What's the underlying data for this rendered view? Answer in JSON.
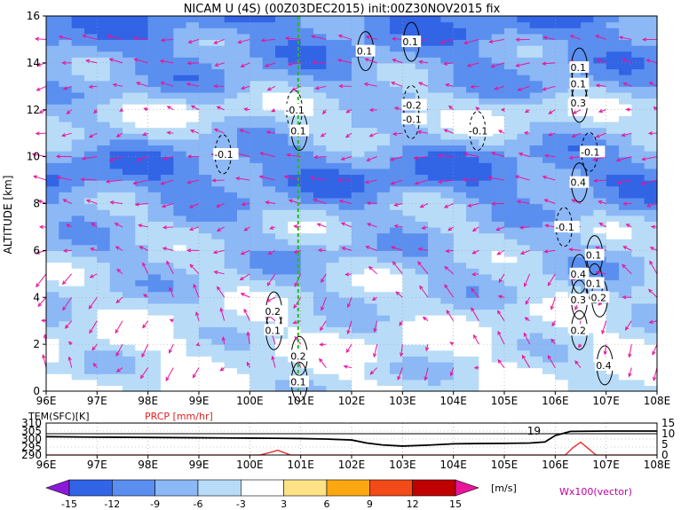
{
  "title": "NICAM U (4S) (00Z03DEC2015) init:00Z30NOV2015 fix",
  "chart_data": [
    {
      "type": "heatmap",
      "title": "NICAM U (4S) (00Z03DEC2015) init:00Z30NOV2015 fix",
      "ylabel": "ALTITUDE [km]",
      "x_ticks": [
        "96E",
        "97E",
        "98E",
        "99E",
        "100E",
        "101E",
        "102E",
        "103E",
        "104E",
        "105E",
        "106E",
        "107E",
        "108E"
      ],
      "y_ticks": [
        "0",
        "2",
        "4",
        "6",
        "8",
        "10",
        "12",
        "14",
        "16"
      ],
      "xlim": [
        96,
        108
      ],
      "ylim": [
        0,
        16
      ],
      "colorbar": {
        "levels": [
          "-15",
          "-12",
          "-9",
          "-6",
          "-3",
          "3",
          "6",
          "9",
          "12",
          "15"
        ],
        "unit": "[m/s]",
        "colors": [
          "#8b1ad8",
          "#3264e6",
          "#5a8ff0",
          "#8cb8f5",
          "#b8dcf8",
          "#ffffff",
          "#fde286",
          "#fba810",
          "#f24a18",
          "#c00000",
          "#e8149a"
        ]
      },
      "vector_label": "Wx100(vector)",
      "band_values": [
        {
          "z": 0,
          "u": -3
        },
        {
          "z": 1,
          "u": -4
        },
        {
          "z": 2,
          "u": -3
        },
        {
          "z": 3,
          "u": -4
        },
        {
          "z": 4,
          "u": -5
        },
        {
          "z": 5,
          "u": -6
        },
        {
          "z": 6,
          "u": -7
        },
        {
          "z": 7,
          "u": -6
        },
        {
          "z": 8,
          "u": -8
        },
        {
          "z": 9,
          "u": -11
        },
        {
          "z": 10,
          "u": -10
        },
        {
          "z": 11,
          "u": -6
        },
        {
          "z": 12,
          "u": -4
        },
        {
          "z": 13,
          "u": -8
        },
        {
          "z": 14,
          "u": -9
        },
        {
          "z": 15,
          "u": -10
        },
        {
          "z": 16,
          "u": -11
        }
      ],
      "contour_labels": [
        {
          "x": 100.3,
          "z": 3.4,
          "text": "0.2"
        },
        {
          "x": 100.3,
          "z": 2.6,
          "text": "0.1"
        },
        {
          "x": 100.7,
          "z": 12.0,
          "text": "-0.1"
        },
        {
          "x": 100.8,
          "z": 11.1,
          "text": "0.1"
        },
        {
          "x": 100.8,
          "z": 1.5,
          "text": "0.2"
        },
        {
          "x": 100.8,
          "z": 0.4,
          "text": "0.1"
        },
        {
          "x": 99.3,
          "z": 10.1,
          "text": "-0.1"
        },
        {
          "x": 102.1,
          "z": 14.5,
          "text": "0.1"
        },
        {
          "x": 103.0,
          "z": 14.9,
          "text": "0.1"
        },
        {
          "x": 103.0,
          "z": 12.2,
          "text": "-0.2"
        },
        {
          "x": 103.0,
          "z": 11.6,
          "text": "-0.1"
        },
        {
          "x": 104.3,
          "z": 11.1,
          "text": "-0.1"
        },
        {
          "x": 106.3,
          "z": 13.8,
          "text": "0.1"
        },
        {
          "x": 106.3,
          "z": 13.1,
          "text": "0.1"
        },
        {
          "x": 106.3,
          "z": 12.3,
          "text": "0.3"
        },
        {
          "x": 106.5,
          "z": 10.2,
          "text": "-0.1"
        },
        {
          "x": 106.3,
          "z": 8.9,
          "text": "0.4"
        },
        {
          "x": 106.0,
          "z": 7.0,
          "text": "-0.1"
        },
        {
          "x": 106.6,
          "z": 5.8,
          "text": "0.1"
        },
        {
          "x": 106.3,
          "z": 5.0,
          "text": "0.4"
        },
        {
          "x": 106.6,
          "z": 4.6,
          "text": "0.1"
        },
        {
          "x": 106.7,
          "z": 4.0,
          "text": "0.2"
        },
        {
          "x": 106.3,
          "z": 3.9,
          "text": "0.3"
        },
        {
          "x": 106.3,
          "z": 2.6,
          "text": "0.2"
        },
        {
          "x": 106.8,
          "z": 1.1,
          "text": "0.4"
        }
      ],
      "section_line_x": 100.95
    },
    {
      "type": "line",
      "x_ticks": [
        "96E",
        "97E",
        "98E",
        "99E",
        "100E",
        "101E",
        "102E",
        "103E",
        "104E",
        "105E",
        "106E",
        "107E",
        "108E"
      ],
      "left_axis_label": "TEM(SFC)[K]",
      "right_axis_label": "PRCP [mm/hr]",
      "left_ticks": [
        "290",
        "295",
        "300",
        "305",
        "310"
      ],
      "right_ticks": [
        "0",
        "5",
        "10",
        "15"
      ],
      "series": [
        {
          "name": "TEM(SFC)[K]",
          "color": "#000000",
          "x": [
            96,
            97,
            98,
            99,
            100,
            100.5,
            101,
            101.5,
            102,
            102.3,
            102.6,
            103,
            103.5,
            104,
            104.5,
            105,
            105.5,
            105.8,
            106.0,
            106.3,
            107,
            108
          ],
          "values": [
            301.5,
            301.2,
            301.0,
            300.8,
            300.6,
            300.5,
            300.3,
            300.0,
            299.4,
            297.5,
            296.3,
            295.6,
            296.2,
            297.0,
            297.2,
            297.3,
            297.5,
            298.2,
            302.2,
            304.8,
            305,
            305
          ]
        },
        {
          "name": "PRCP [mm/hr]",
          "color": "#e82020",
          "x": [
            96,
            100.2,
            100.4,
            100.55,
            100.8,
            102,
            106.2,
            106.35,
            106.5,
            106.65,
            106.8,
            108
          ],
          "values": [
            0,
            0,
            1.2,
            2.2,
            0,
            0,
            0,
            3.5,
            6.0,
            3.0,
            0,
            0
          ]
        }
      ],
      "annotation": "19"
    }
  ]
}
